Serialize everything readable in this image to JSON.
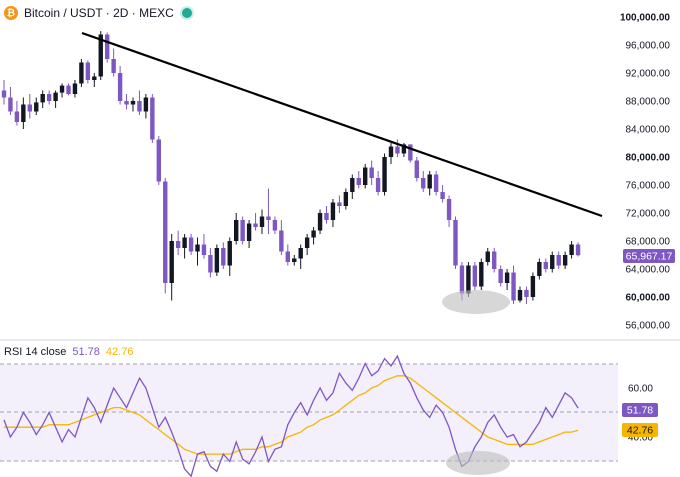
{
  "header": {
    "coin_icon_glyph": "₿",
    "title": "Bitcoin / USDT · 2D · MEXC",
    "live_dot_color": "#22ab94"
  },
  "price_axis": {
    "labels": [
      "100,000.00",
      "96,000.00",
      "92,000.00",
      "88,000.00",
      "84,000.00",
      "80,000.00",
      "76,000.00",
      "72,000.00",
      "68,000.00",
      "64,000.00",
      "60,000.00",
      "56,000.00"
    ],
    "values": [
      100000,
      96000,
      92000,
      88000,
      84000,
      80000,
      76000,
      72000,
      68000,
      64000,
      60000,
      56000
    ],
    "bold": [
      "100,000.00",
      "80,000.00",
      "60,000.00"
    ]
  },
  "last_price": {
    "label": "65,967.17",
    "value": 65967.17,
    "color": "#7e57c2"
  },
  "rsi_panel": {
    "title": "RSI 14 close",
    "rsi_value_label": "51.78",
    "ma_value_label": "42.76",
    "axis_labels": [
      "60.00",
      "40.00"
    ],
    "axis_values": [
      60,
      40
    ],
    "badge_rsi": "51.78",
    "badge_ma": "42.76",
    "rsi_color": "#7e57c2",
    "ma_color": "#f7b500",
    "band_color": "#f3effb"
  },
  "colors": {
    "up_candle": "#131722",
    "down_candle": "#7e57c2",
    "trendline": "#000000",
    "highlight_ellipse": "#bdbdbd"
  },
  "chart_data": [
    {
      "type": "candlestick",
      "title": "Bitcoin / USDT · 2D · MEXC",
      "ylim": [
        54000,
        101000
      ],
      "up_color": "#131722",
      "down_color": "#7e57c2",
      "candles": [
        [
          89500,
          91000,
          87500,
          88500
        ],
        [
          88500,
          90000,
          86000,
          86500
        ],
        [
          86500,
          88000,
          84500,
          85000
        ],
        [
          85000,
          88500,
          84000,
          87500
        ],
        [
          87500,
          89000,
          85500,
          86500
        ],
        [
          86500,
          88500,
          86000,
          87800
        ],
        [
          87800,
          89500,
          87000,
          89000
        ],
        [
          89000,
          89500,
          87500,
          88000
        ],
        [
          88000,
          89500,
          87000,
          89200
        ],
        [
          89200,
          90500,
          88500,
          90200
        ],
        [
          90200,
          90500,
          88800,
          89000
        ],
        [
          89000,
          91000,
          88500,
          90500
        ],
        [
          90500,
          94000,
          90000,
          93500
        ],
        [
          93500,
          93800,
          90500,
          91000
        ],
        [
          91000,
          92000,
          90000,
          91500
        ],
        [
          91500,
          98000,
          91000,
          97500
        ],
        [
          97500,
          97800,
          93500,
          94000
        ],
        [
          94000,
          95500,
          91500,
          92000
        ],
        [
          92000,
          93000,
          87500,
          88000
        ],
        [
          88000,
          89000,
          86800,
          87500
        ],
        [
          87500,
          88500,
          86500,
          88000
        ],
        [
          88000,
          89500,
          86000,
          86500
        ],
        [
          86500,
          89000,
          85500,
          88500
        ],
        [
          88500,
          89000,
          82000,
          82500
        ],
        [
          82500,
          83000,
          76000,
          76500
        ],
        [
          76500,
          77000,
          60500,
          62000
        ],
        [
          62000,
          69000,
          59500,
          68000
        ],
        [
          68000,
          69500,
          66000,
          67000
        ],
        [
          67000,
          69000,
          65500,
          68500
        ],
        [
          68500,
          69000,
          66000,
          66500
        ],
        [
          66500,
          68500,
          64500,
          67500
        ],
        [
          67500,
          69000,
          65500,
          66000
        ],
        [
          66000,
          67000,
          62800,
          63500
        ],
        [
          63500,
          67500,
          63000,
          67000
        ],
        [
          67000,
          67800,
          64000,
          64500
        ],
        [
          64500,
          68500,
          63000,
          68000
        ],
        [
          68000,
          72000,
          67500,
          71000
        ],
        [
          71000,
          71500,
          67500,
          68000
        ],
        [
          68000,
          71000,
          67000,
          70500
        ],
        [
          70500,
          72000,
          69500,
          70000
        ],
        [
          70000,
          72500,
          69000,
          71500
        ],
        [
          71500,
          75500,
          69000,
          71000
        ],
        [
          71000,
          71500,
          69000,
          69500
        ],
        [
          69500,
          71000,
          66000,
          66500
        ],
        [
          66500,
          67500,
          64500,
          65000
        ],
        [
          65000,
          66000,
          64500,
          65500
        ],
        [
          65500,
          67500,
          64000,
          67000
        ],
        [
          67000,
          69000,
          66000,
          68500
        ],
        [
          68500,
          70000,
          67500,
          69500
        ],
        [
          69500,
          72500,
          69000,
          72000
        ],
        [
          72000,
          73000,
          70500,
          71000
        ],
        [
          71000,
          74000,
          70000,
          73500
        ],
        [
          73500,
          74500,
          72000,
          73000
        ],
        [
          73000,
          75500,
          72500,
          75000
        ],
        [
          75000,
          77500,
          74000,
          77000
        ],
        [
          77000,
          78000,
          75500,
          76000
        ],
        [
          76000,
          79000,
          75500,
          78500
        ],
        [
          78500,
          79500,
          76000,
          77000
        ],
        [
          77000,
          78000,
          74500,
          75000
        ],
        [
          75000,
          80500,
          74500,
          80000
        ],
        [
          80000,
          82000,
          79000,
          81500
        ],
        [
          81500,
          82500,
          80000,
          80500
        ],
        [
          80500,
          82000,
          80000,
          81800
        ],
        [
          81800,
          81800,
          79200,
          79500
        ],
        [
          79500,
          80000,
          76500,
          77000
        ],
        [
          77000,
          78000,
          75000,
          75500
        ],
        [
          75500,
          78000,
          74500,
          77500
        ],
        [
          77500,
          78000,
          74500,
          75000
        ],
        [
          75000,
          76000,
          73500,
          74000
        ],
        [
          74000,
          74500,
          70000,
          71000
        ],
        [
          71000,
          71500,
          64000,
          64500
        ],
        [
          64500,
          65000,
          59500,
          60500
        ],
        [
          60500,
          65000,
          60000,
          64500
        ],
        [
          64500,
          65000,
          61000,
          61500
        ],
        [
          61500,
          65500,
          61000,
          65000
        ],
        [
          65000,
          67000,
          64500,
          66500
        ],
        [
          66500,
          67000,
          63500,
          64000
        ],
        [
          64000,
          64500,
          61500,
          62000
        ],
        [
          62000,
          64000,
          61000,
          63500
        ],
        [
          63500,
          64500,
          59000,
          59500
        ],
        [
          59500,
          61500,
          59200,
          61000
        ],
        [
          61000,
          61500,
          59000,
          60000
        ],
        [
          60000,
          63500,
          59500,
          63000
        ],
        [
          63000,
          65500,
          62500,
          65000
        ],
        [
          65000,
          65500,
          63500,
          64000
        ],
        [
          64000,
          66500,
          63500,
          66000
        ],
        [
          66000,
          66500,
          64000,
          64500
        ],
        [
          64500,
          66500,
          64000,
          66000
        ],
        [
          66000,
          68000,
          65500,
          67500
        ],
        [
          67500,
          67800,
          65800,
          65967
        ]
      ]
    },
    {
      "type": "line",
      "title": "RSI 14 close",
      "ylim": [
        20,
        80
      ],
      "series": [
        {
          "name": "RSI",
          "values": [
            47,
            40,
            44,
            50,
            46,
            41,
            45,
            50,
            44,
            38,
            43,
            40,
            48,
            56,
            52,
            46,
            53,
            60,
            56,
            52,
            58,
            64,
            60,
            52,
            44,
            48,
            42,
            35,
            27,
            24,
            33,
            34,
            28,
            26,
            33,
            30,
            38,
            31,
            29,
            34,
            40,
            30,
            35,
            36,
            45,
            50,
            54,
            49,
            55,
            60,
            55,
            58,
            66,
            62,
            59,
            64,
            70,
            65,
            67,
            72,
            69,
            73,
            66,
            62,
            56,
            51,
            48,
            53,
            50,
            44,
            35,
            28,
            30,
            36,
            40,
            46,
            49,
            44,
            40,
            41,
            36,
            38,
            42,
            46,
            52,
            48,
            53,
            58,
            56,
            51.78
          ]
        },
        {
          "name": "MA",
          "values": [
            44,
            44,
            44,
            44,
            44,
            44,
            44,
            45,
            45,
            45,
            45,
            46,
            47,
            48,
            49,
            50,
            51,
            52,
            52,
            51,
            50,
            49,
            47,
            45,
            43,
            41,
            39,
            37,
            35,
            34,
            33,
            33,
            33,
            33,
            33,
            33,
            34,
            35,
            35,
            35,
            36,
            36,
            37,
            38,
            40,
            41,
            42,
            44,
            45,
            47,
            48,
            49,
            51,
            53,
            55,
            57,
            58,
            60,
            61,
            63,
            64,
            65,
            65,
            64,
            62,
            60,
            58,
            56,
            54,
            52,
            50,
            48,
            46,
            44,
            42,
            40,
            39,
            38,
            37,
            37,
            37,
            37,
            37,
            38,
            39,
            40,
            41,
            42,
            42,
            42.76
          ]
        }
      ]
    }
  ]
}
